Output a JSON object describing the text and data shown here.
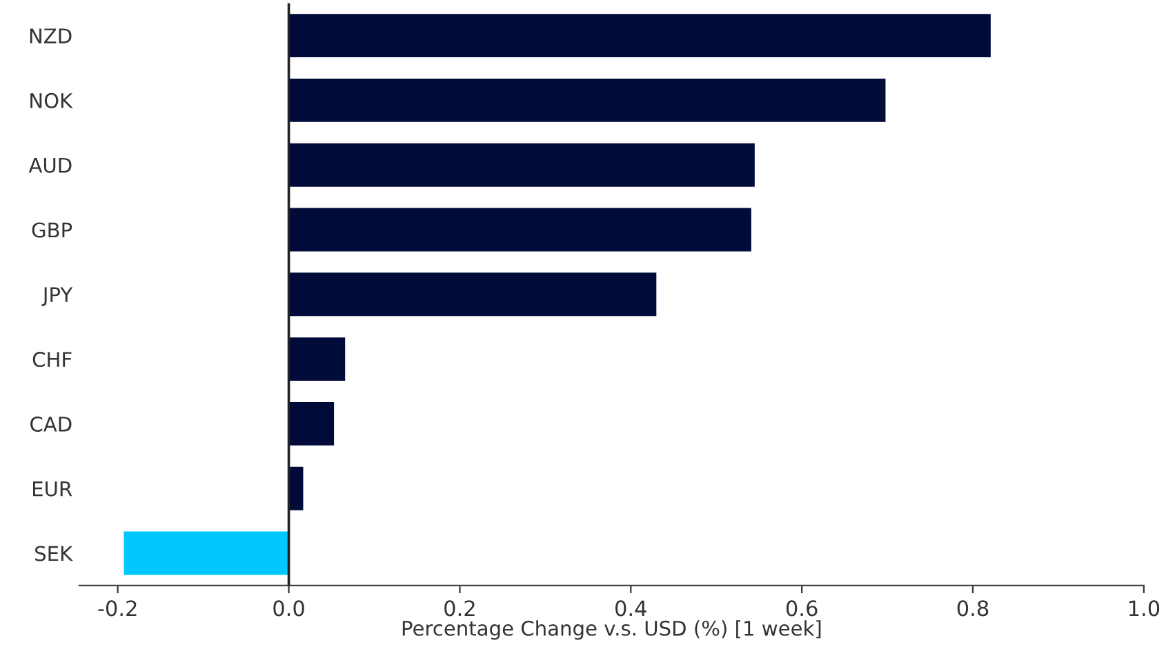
{
  "chart_data": {
    "type": "bar",
    "orientation": "horizontal",
    "categories": [
      "NZD",
      "NOK",
      "AUD",
      "GBP",
      "JPY",
      "CHF",
      "CAD",
      "EUR",
      "SEK"
    ],
    "values": [
      0.822,
      0.699,
      0.546,
      0.542,
      0.431,
      0.067,
      0.054,
      0.018,
      -0.194
    ],
    "colors": [
      "#000b3a",
      "#000b3a",
      "#000b3a",
      "#000b3a",
      "#000b3a",
      "#000b3a",
      "#000b3a",
      "#000b3a",
      "#00c8ff"
    ],
    "xlabel": "Percentage Change v.s. USD (%) [1 week]",
    "xlim": [
      -0.245,
      1.0
    ],
    "xticks": [
      {
        "value": -0.2,
        "label": "-0.2"
      },
      {
        "value": 0.0,
        "label": "0.0"
      },
      {
        "value": 0.2,
        "label": "0.2"
      },
      {
        "value": 0.4,
        "label": "0.4"
      },
      {
        "value": 0.6,
        "label": "0.6"
      },
      {
        "value": 0.8,
        "label": "0.8"
      },
      {
        "value": 1.0,
        "label": "1.0"
      }
    ],
    "ref_lines": [
      {
        "axis": "x",
        "value": 0,
        "color": "#222222"
      }
    ],
    "grid": false,
    "legend": false
  }
}
